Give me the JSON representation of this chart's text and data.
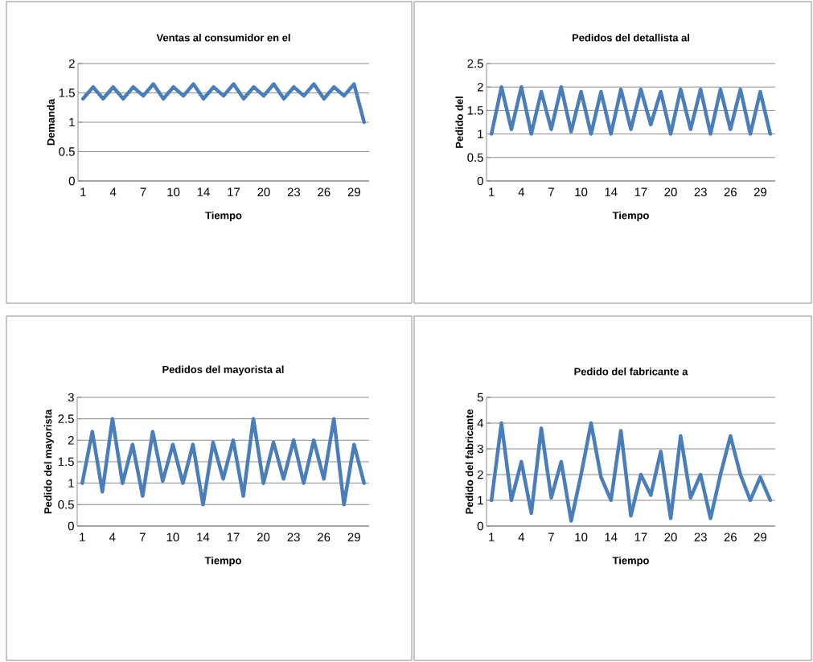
{
  "chart_data": [
    {
      "type": "line",
      "title": "Ventas al consumidor en el",
      "xlabel": "Tiempo",
      "ylabel": "Demanda",
      "color": "#4a7ebb",
      "grid": "y",
      "ylim": [
        0,
        2
      ],
      "yticks": [
        0,
        0.5,
        1,
        1.5,
        2
      ],
      "categories": [
        "1",
        null,
        null,
        "4",
        null,
        null,
        "7",
        null,
        null,
        "10",
        null,
        null,
        "14",
        null,
        null,
        "17",
        null,
        null,
        "20",
        null,
        null,
        "23",
        null,
        null,
        "26",
        null,
        null,
        "29",
        null
      ],
      "values": [
        1.4,
        1.6,
        1.4,
        1.6,
        1.4,
        1.6,
        1.45,
        1.65,
        1.4,
        1.6,
        1.45,
        1.65,
        1.4,
        1.6,
        1.45,
        1.65,
        1.4,
        1.6,
        1.45,
        1.65,
        1.4,
        1.6,
        1.45,
        1.65,
        1.4,
        1.6,
        1.45,
        1.65,
        1.0
      ]
    },
    {
      "type": "line",
      "title": "Pedidos del detallista al",
      "xlabel": "Tiempo",
      "ylabel": "Pedido del",
      "color": "#4a7ebb",
      "grid": "y",
      "ylim": [
        0,
        2.5
      ],
      "yticks": [
        0,
        0.5,
        1,
        1.5,
        2,
        2.5
      ],
      "categories": [
        "1",
        null,
        null,
        "4",
        null,
        null,
        "7",
        null,
        null,
        "10",
        null,
        null,
        "14",
        null,
        null,
        "17",
        null,
        null,
        "20",
        null,
        null,
        "23",
        null,
        null,
        "26",
        null,
        null,
        "29",
        null
      ],
      "values": [
        1.0,
        2.0,
        1.1,
        2.0,
        1.0,
        1.9,
        1.1,
        2.0,
        1.05,
        1.9,
        1.0,
        1.9,
        1.0,
        1.95,
        1.1,
        1.95,
        1.2,
        1.9,
        1.0,
        1.95,
        1.1,
        1.95,
        1.0,
        1.95,
        1.1,
        1.95,
        1.0,
        1.9,
        1.0
      ]
    },
    {
      "type": "line",
      "title": "Pedidos del mayorista al",
      "xlabel": "Tiempo",
      "ylabel": "Pedido del mayorista",
      "color": "#4a7ebb",
      "grid": "y",
      "ylim": [
        0,
        3
      ],
      "yticks": [
        0,
        0.5,
        1,
        1.5,
        2,
        2.5,
        3
      ],
      "categories": [
        "1",
        null,
        null,
        "4",
        null,
        null,
        "7",
        null,
        null,
        "10",
        null,
        null,
        "14",
        null,
        null,
        "17",
        null,
        null,
        "20",
        null,
        null,
        "23",
        null,
        null,
        "26",
        null,
        null,
        "29",
        null
      ],
      "values": [
        1.0,
        2.2,
        0.8,
        2.5,
        1.0,
        1.9,
        0.7,
        2.2,
        1.05,
        1.9,
        1.0,
        1.9,
        0.5,
        1.95,
        1.1,
        2.0,
        0.7,
        2.5,
        1.0,
        1.95,
        1.1,
        2.0,
        1.0,
        2.0,
        1.1,
        2.5,
        0.5,
        1.9,
        1.0
      ]
    },
    {
      "type": "line",
      "title": "Pedido del fabricante a",
      "xlabel": "Tiempo",
      "ylabel": "Pedido del fabricante",
      "color": "#4a7ebb",
      "grid": "y",
      "ylim": [
        0,
        5
      ],
      "yticks": [
        0,
        1,
        2,
        3,
        4,
        5
      ],
      "categories": [
        "1",
        null,
        null,
        "4",
        null,
        null,
        "7",
        null,
        null,
        "10",
        null,
        null,
        "14",
        null,
        null,
        "17",
        null,
        null,
        "20",
        null,
        null,
        "23",
        null,
        null,
        "26",
        null,
        null,
        "29",
        null
      ],
      "values": [
        1.0,
        4.0,
        1.0,
        2.5,
        0.5,
        3.8,
        1.1,
        2.5,
        0.2,
        2.0,
        4.0,
        1.9,
        1.0,
        3.7,
        0.4,
        2.0,
        1.2,
        2.9,
        0.3,
        3.5,
        1.1,
        2.0,
        0.3,
        2.0,
        3.5,
        2.0,
        1.0,
        1.9,
        1.0
      ]
    }
  ]
}
